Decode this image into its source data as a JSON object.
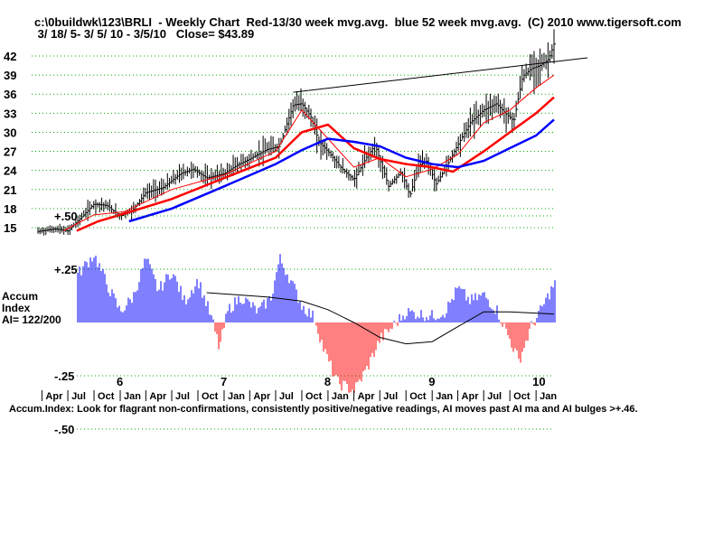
{
  "header": {
    "line1": "c:\\0buildwk\\123\\BRLI  - Weekly Chart  Red-13/30 week mvg.avg.  blue 52 week mvg.avg.  (C) 2010 www.tigersoft.com",
    "line2": " 3/ 18/ 5- 3/ 5/ 10 - 3/5/10   Close= $43.89"
  },
  "indicator": {
    "label_line1": "Accum",
    "label_line2": "Index",
    "label_line3": "AI= 122/200"
  },
  "footer": {
    "note": "Accum.Index: Look for flagrant non-confirmations, consistently positive/negative readings, AI moves past AI ma and AI bulges >+.46."
  },
  "x_axis": {
    "years": [
      "6",
      "7",
      "8",
      "9",
      "10"
    ],
    "months": [
      "Apr",
      "Jul",
      "Oct",
      "Jan",
      "Apr",
      "Jul",
      "Oct",
      "Jan",
      "Apr",
      "Jul",
      "Oct",
      "Jan",
      "Apr",
      "Jul",
      "Oct",
      "Jan",
      "Apr",
      "Jul",
      "Oct",
      "Jan"
    ]
  },
  "colors": {
    "price_bars": "#000000",
    "ma_13": "#ff0000",
    "ma_30": "#ff0000",
    "ma_52": "#0000ff",
    "ai_positive": "#0000ff",
    "ai_negative": "#ff0000",
    "gridline": "#00aa00",
    "trendline": "#000000"
  },
  "chart_data": [
    {
      "type": "ohlc",
      "yticks": [
        "15",
        "18",
        "21",
        "24",
        "27",
        "30",
        "33",
        "36",
        "39",
        "42"
      ],
      "ylim": [
        13.5,
        44
      ],
      "x_range": [
        "2005-03-18",
        "2010-03-05"
      ],
      "close_last": 43.89,
      "weekly_close_anchors": [
        {
          "date": "2005-03-18",
          "close": 14.4
        },
        {
          "date": "2005-05-15",
          "close": 14.8
        },
        {
          "date": "2005-07-01",
          "close": 14.5
        },
        {
          "date": "2005-08-15",
          "close": 16.5
        },
        {
          "date": "2005-10-01",
          "close": 18.7
        },
        {
          "date": "2005-11-15",
          "close": 18.5
        },
        {
          "date": "2006-01-01",
          "close": 16.8
        },
        {
          "date": "2006-02-15",
          "close": 17.8
        },
        {
          "date": "2006-04-01",
          "close": 20.5
        },
        {
          "date": "2006-06-01",
          "close": 21.3
        },
        {
          "date": "2006-08-01",
          "close": 23.5
        },
        {
          "date": "2006-09-15",
          "close": 24.2
        },
        {
          "date": "2006-11-01",
          "close": 22.8
        },
        {
          "date": "2007-01-01",
          "close": 23.5
        },
        {
          "date": "2007-02-15",
          "close": 24.8
        },
        {
          "date": "2007-04-01",
          "close": 25.8
        },
        {
          "date": "2007-06-01",
          "close": 27.3
        },
        {
          "date": "2007-07-15",
          "close": 27.8
        },
        {
          "date": "2007-08-15",
          "close": 32.0
        },
        {
          "date": "2007-09-01",
          "close": 34.3
        },
        {
          "date": "2007-10-01",
          "close": 34.5
        },
        {
          "date": "2007-11-01",
          "close": 32.5
        },
        {
          "date": "2007-12-01",
          "close": 28.5
        },
        {
          "date": "2008-01-01",
          "close": 27.0
        },
        {
          "date": "2008-02-15",
          "close": 24.5
        },
        {
          "date": "2008-04-01",
          "close": 22.5
        },
        {
          "date": "2008-05-15",
          "close": 26.0
        },
        {
          "date": "2008-06-15",
          "close": 28.0
        },
        {
          "date": "2008-08-01",
          "close": 21.5
        },
        {
          "date": "2008-09-15",
          "close": 23.8
        },
        {
          "date": "2008-10-15",
          "close": 20.0
        },
        {
          "date": "2008-11-15",
          "close": 24.8
        },
        {
          "date": "2008-12-15",
          "close": 25.5
        },
        {
          "date": "2009-01-15",
          "close": 21.8
        },
        {
          "date": "2009-02-15",
          "close": 24.2
        },
        {
          "date": "2009-04-01",
          "close": 28.0
        },
        {
          "date": "2009-05-15",
          "close": 31.5
        },
        {
          "date": "2009-07-01",
          "close": 33.5
        },
        {
          "date": "2009-08-15",
          "close": 34.5
        },
        {
          "date": "2009-09-15",
          "close": 33.0
        },
        {
          "date": "2009-10-15",
          "close": 31.8
        },
        {
          "date": "2009-11-15",
          "close": 38.8
        },
        {
          "date": "2009-12-15",
          "close": 40.0
        },
        {
          "date": "2010-01-15",
          "close": 40.5
        },
        {
          "date": "2010-02-15",
          "close": 41.5
        },
        {
          "date": "2010-03-05",
          "close": 43.89
        }
      ],
      "ma_13_anchors": [
        {
          "date": "2005-06-15",
          "value": 14.5
        },
        {
          "date": "2005-10-01",
          "value": 17.0
        },
        {
          "date": "2006-01-15",
          "value": 17.5
        },
        {
          "date": "2006-07-01",
          "value": 21.0
        },
        {
          "date": "2007-01-01",
          "value": 23.3
        },
        {
          "date": "2007-07-01",
          "value": 27.0
        },
        {
          "date": "2007-10-01",
          "value": 33.5
        },
        {
          "date": "2008-01-01",
          "value": 29.0
        },
        {
          "date": "2008-04-01",
          "value": 24.5
        },
        {
          "date": "2008-07-01",
          "value": 26.0
        },
        {
          "date": "2008-10-01",
          "value": 23.0
        },
        {
          "date": "2009-01-01",
          "value": 24.2
        },
        {
          "date": "2009-04-01",
          "value": 26.5
        },
        {
          "date": "2009-07-01",
          "value": 31.5
        },
        {
          "date": "2009-10-01",
          "value": 33.5
        },
        {
          "date": "2010-01-01",
          "value": 37.0
        },
        {
          "date": "2010-03-05",
          "value": 39.0
        }
      ],
      "ma_30_anchors": [
        {
          "date": "2005-08-01",
          "value": 14.5
        },
        {
          "date": "2005-10-15",
          "value": 16.0
        },
        {
          "date": "2006-01-15",
          "value": 17.2
        },
        {
          "date": "2006-07-01",
          "value": 19.5
        },
        {
          "date": "2007-01-01",
          "value": 22.8
        },
        {
          "date": "2007-07-01",
          "value": 26.0
        },
        {
          "date": "2007-10-01",
          "value": 30.0
        },
        {
          "date": "2008-01-01",
          "value": 31.2
        },
        {
          "date": "2008-04-01",
          "value": 27.5
        },
        {
          "date": "2008-07-01",
          "value": 25.8
        },
        {
          "date": "2008-10-01",
          "value": 25.0
        },
        {
          "date": "2009-01-01",
          "value": 24.5
        },
        {
          "date": "2009-03-15",
          "value": 23.8
        },
        {
          "date": "2009-07-01",
          "value": 27.0
        },
        {
          "date": "2009-10-01",
          "value": 30.0
        },
        {
          "date": "2010-01-01",
          "value": 33.0
        },
        {
          "date": "2010-03-05",
          "value": 35.5
        }
      ],
      "ma_52_anchors": [
        {
          "date": "2006-02-01",
          "value": 16.0
        },
        {
          "date": "2006-07-01",
          "value": 18.0
        },
        {
          "date": "2007-01-01",
          "value": 21.5
        },
        {
          "date": "2007-07-01",
          "value": 25.0
        },
        {
          "date": "2007-10-01",
          "value": 27.2
        },
        {
          "date": "2008-01-01",
          "value": 29.0
        },
        {
          "date": "2008-04-01",
          "value": 28.5
        },
        {
          "date": "2008-07-01",
          "value": 27.8
        },
        {
          "date": "2008-10-01",
          "value": 26.0
        },
        {
          "date": "2009-01-01",
          "value": 25.0
        },
        {
          "date": "2009-04-01",
          "value": 24.5
        },
        {
          "date": "2009-07-01",
          "value": 25.5
        },
        {
          "date": "2009-10-01",
          "value": 27.5
        },
        {
          "date": "2010-01-01",
          "value": 29.5
        },
        {
          "date": "2010-03-05",
          "value": 32.0
        }
      ],
      "trendline": [
        {
          "date": "2007-09-01",
          "value": 36.3
        },
        {
          "date": "2010-04-15",
          "value": 42.0
        }
      ]
    },
    {
      "type": "bar",
      "yticks": [
        "+.50",
        "+.25",
        "-.25",
        "-.50"
      ],
      "ylim": [
        -0.55,
        0.55
      ],
      "ai_anchors": [
        {
          "date": "2005-03-18",
          "value": -0.05
        },
        {
          "date": "2005-05-01",
          "value": 0.03
        },
        {
          "date": "2005-06-15",
          "value": 0.05
        },
        {
          "date": "2005-08-01",
          "value": 0.22
        },
        {
          "date": "2005-10-01",
          "value": 0.32
        },
        {
          "date": "2005-11-15",
          "value": 0.18
        },
        {
          "date": "2006-01-01",
          "value": 0.05
        },
        {
          "date": "2006-02-15",
          "value": 0.12
        },
        {
          "date": "2006-04-01",
          "value": 0.3
        },
        {
          "date": "2006-05-15",
          "value": 0.15
        },
        {
          "date": "2006-07-01",
          "value": 0.24
        },
        {
          "date": "2006-08-15",
          "value": 0.1
        },
        {
          "date": "2006-10-01",
          "value": 0.2
        },
        {
          "date": "2006-11-15",
          "value": 0.03
        },
        {
          "date": "2006-12-15",
          "value": -0.12
        },
        {
          "date": "2007-01-15",
          "value": 0.06
        },
        {
          "date": "2007-03-01",
          "value": 0.12
        },
        {
          "date": "2007-05-01",
          "value": 0.05
        },
        {
          "date": "2007-06-15",
          "value": 0.12
        },
        {
          "date": "2007-07-15",
          "value": 0.3
        },
        {
          "date": "2007-08-15",
          "value": 0.22
        },
        {
          "date": "2007-10-01",
          "value": 0.08
        },
        {
          "date": "2007-11-15",
          "value": 0.02
        },
        {
          "date": "2007-12-15",
          "value": -0.12
        },
        {
          "date": "2008-02-01",
          "value": -0.28
        },
        {
          "date": "2008-04-01",
          "value": -0.32
        },
        {
          "date": "2008-05-15",
          "value": -0.22
        },
        {
          "date": "2008-07-01",
          "value": -0.08
        },
        {
          "date": "2008-08-15",
          "value": -0.02
        },
        {
          "date": "2008-10-01",
          "value": 0.05
        },
        {
          "date": "2008-11-15",
          "value": 0.04
        },
        {
          "date": "2009-01-01",
          "value": 0.03
        },
        {
          "date": "2009-02-15",
          "value": 0.05
        },
        {
          "date": "2009-04-01",
          "value": 0.16
        },
        {
          "date": "2009-05-15",
          "value": 0.1
        },
        {
          "date": "2009-07-01",
          "value": 0.13
        },
        {
          "date": "2009-08-15",
          "value": 0.06
        },
        {
          "date": "2009-10-01",
          "value": -0.08
        },
        {
          "date": "2009-11-01",
          "value": -0.18
        },
        {
          "date": "2009-12-15",
          "value": -0.02
        },
        {
          "date": "2010-01-15",
          "value": 0.05
        },
        {
          "date": "2010-03-05",
          "value": 0.18
        }
      ],
      "ai_ma_anchors": [
        {
          "date": "2006-11-01",
          "value": 0.14
        },
        {
          "date": "2007-06-01",
          "value": 0.12
        },
        {
          "date": "2007-10-01",
          "value": 0.1
        },
        {
          "date": "2008-01-01",
          "value": 0.06
        },
        {
          "date": "2008-04-01",
          "value": 0.0
        },
        {
          "date": "2008-07-01",
          "value": -0.07
        },
        {
          "date": "2008-10-01",
          "value": -0.1
        },
        {
          "date": "2009-01-01",
          "value": -0.09
        },
        {
          "date": "2009-04-01",
          "value": -0.02
        },
        {
          "date": "2009-07-01",
          "value": 0.05
        },
        {
          "date": "2009-10-01",
          "value": 0.05
        },
        {
          "date": "2010-03-05",
          "value": 0.04
        }
      ]
    }
  ]
}
